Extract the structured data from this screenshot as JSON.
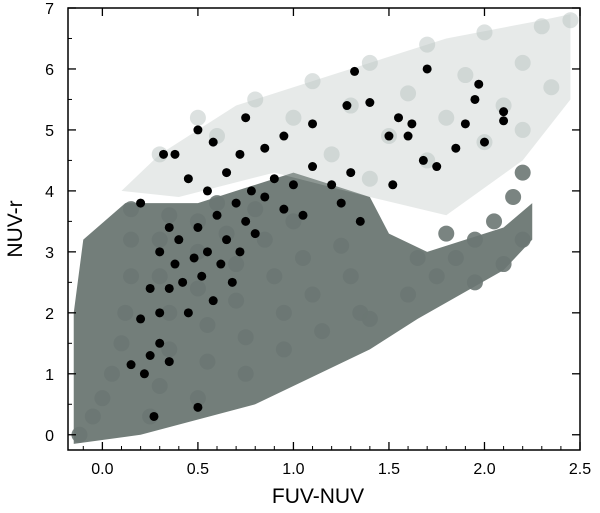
{
  "chart_data": {
    "type": "scatter",
    "title": "",
    "xlabel": "FUV-NUV",
    "ylabel": "NUV-r",
    "xlim": [
      -0.18,
      2.5
    ],
    "ylim": [
      -0.25,
      7
    ],
    "xticks": [
      0.0,
      0.5,
      1.0,
      1.5,
      2.0,
      2.5
    ],
    "xtick_labels": [
      "0.0",
      "0.5",
      "1.0",
      "1.5",
      "2.0",
      "2.5"
    ],
    "yticks": [
      0,
      1,
      2,
      3,
      4,
      5,
      6,
      7
    ],
    "ytick_labels": [
      "0",
      "1",
      "2",
      "3",
      "4",
      "5",
      "6",
      "7"
    ],
    "grid": false,
    "legend": "none",
    "colors": {
      "model_dense": "#6b7773",
      "model_faint": "#b9c4c1",
      "observed": "#000000"
    },
    "series": [
      {
        "style": "grey translucent model grid points",
        "points": [
          [
            -0.12,
            0.0
          ],
          [
            -0.05,
            0.3
          ],
          [
            0.0,
            0.6
          ],
          [
            0.05,
            1.0
          ],
          [
            0.1,
            1.5
          ],
          [
            0.12,
            2.0
          ],
          [
            0.15,
            2.6
          ],
          [
            0.15,
            3.2
          ],
          [
            0.15,
            3.7
          ],
          [
            0.25,
            0.3
          ],
          [
            0.3,
            0.8
          ],
          [
            0.35,
            1.4
          ],
          [
            0.35,
            2.0
          ],
          [
            0.3,
            2.6
          ],
          [
            0.3,
            3.2
          ],
          [
            0.35,
            3.6
          ],
          [
            0.5,
            0.6
          ],
          [
            0.55,
            1.2
          ],
          [
            0.55,
            1.8
          ],
          [
            0.5,
            2.4
          ],
          [
            0.5,
            3.0
          ],
          [
            0.5,
            3.5
          ],
          [
            0.75,
            1.0
          ],
          [
            0.75,
            1.6
          ],
          [
            0.7,
            2.2
          ],
          [
            0.7,
            2.8
          ],
          [
            0.65,
            3.3
          ],
          [
            0.6,
            3.8
          ],
          [
            0.95,
            1.4
          ],
          [
            0.95,
            2.0
          ],
          [
            0.9,
            2.6
          ],
          [
            0.85,
            3.2
          ],
          [
            0.8,
            3.7
          ],
          [
            1.15,
            1.7
          ],
          [
            1.1,
            2.3
          ],
          [
            1.05,
            2.9
          ],
          [
            1.0,
            3.5
          ],
          [
            1.35,
            2.0
          ],
          [
            1.3,
            2.6
          ],
          [
            1.25,
            3.1
          ],
          [
            1.4,
            1.9
          ],
          [
            1.6,
            2.3
          ],
          [
            1.65,
            2.9
          ],
          [
            1.75,
            2.6
          ],
          [
            1.85,
            2.9
          ],
          [
            1.95,
            3.2
          ],
          [
            2.05,
            3.5
          ],
          [
            2.15,
            3.9
          ],
          [
            2.2,
            4.3
          ],
          [
            1.8,
            3.3
          ],
          [
            1.95,
            2.5
          ],
          [
            2.1,
            2.8
          ],
          [
            2.2,
            3.2
          ]
        ]
      },
      {
        "style": "faint upper model envelope",
        "points": [
          [
            0.3,
            4.6
          ],
          [
            0.5,
            5.2
          ],
          [
            0.8,
            5.5
          ],
          [
            1.1,
            5.8
          ],
          [
            1.4,
            6.1
          ],
          [
            1.7,
            6.4
          ],
          [
            2.0,
            6.6
          ],
          [
            2.3,
            6.7
          ],
          [
            2.45,
            6.8
          ],
          [
            0.6,
            4.9
          ],
          [
            1.0,
            5.2
          ],
          [
            1.3,
            5.4
          ],
          [
            1.6,
            5.6
          ],
          [
            1.9,
            5.9
          ],
          [
            2.2,
            6.1
          ],
          [
            2.35,
            5.7
          ],
          [
            1.2,
            4.6
          ],
          [
            1.5,
            4.9
          ],
          [
            1.8,
            5.2
          ],
          [
            2.1,
            5.4
          ],
          [
            1.4,
            4.2
          ],
          [
            1.7,
            4.5
          ],
          [
            2.0,
            4.8
          ],
          [
            2.2,
            5.0
          ]
        ]
      },
      {
        "style": "black observed points",
        "points": [
          [
            0.27,
            0.3
          ],
          [
            0.5,
            0.45
          ],
          [
            0.15,
            1.15
          ],
          [
            0.22,
            1.0
          ],
          [
            0.25,
            1.3
          ],
          [
            0.3,
            1.5
          ],
          [
            0.35,
            1.2
          ],
          [
            0.2,
            1.9
          ],
          [
            0.25,
            2.4
          ],
          [
            0.3,
            2.0
          ],
          [
            0.35,
            2.4
          ],
          [
            0.38,
            2.8
          ],
          [
            0.4,
            3.2
          ],
          [
            0.42,
            2.5
          ],
          [
            0.45,
            2.0
          ],
          [
            0.48,
            2.9
          ],
          [
            0.5,
            3.4
          ],
          [
            0.52,
            2.6
          ],
          [
            0.55,
            3.0
          ],
          [
            0.58,
            2.2
          ],
          [
            0.6,
            3.6
          ],
          [
            0.62,
            2.8
          ],
          [
            0.65,
            3.2
          ],
          [
            0.68,
            2.5
          ],
          [
            0.7,
            3.8
          ],
          [
            0.72,
            3.0
          ],
          [
            0.75,
            3.5
          ],
          [
            0.78,
            4.0
          ],
          [
            0.8,
            3.3
          ],
          [
            0.85,
            3.9
          ],
          [
            0.9,
            4.2
          ],
          [
            0.95,
            3.7
          ],
          [
            1.0,
            4.1
          ],
          [
            1.05,
            3.6
          ],
          [
            1.1,
            4.4
          ],
          [
            0.32,
            4.6
          ],
          [
            0.38,
            4.6
          ],
          [
            0.5,
            5.0
          ],
          [
            0.58,
            4.8
          ],
          [
            0.75,
            5.2
          ],
          [
            0.85,
            4.7
          ],
          [
            0.95,
            4.9
          ],
          [
            1.1,
            5.1
          ],
          [
            0.2,
            3.8
          ],
          [
            0.3,
            3.0
          ],
          [
            0.55,
            4.0
          ],
          [
            0.65,
            4.3
          ],
          [
            0.45,
            4.2
          ],
          [
            0.35,
            3.4
          ],
          [
            0.72,
            4.6
          ],
          [
            1.2,
            4.1
          ],
          [
            1.25,
            3.8
          ],
          [
            1.3,
            4.3
          ],
          [
            1.35,
            3.5
          ],
          [
            1.28,
            5.4
          ],
          [
            1.32,
            5.96
          ],
          [
            1.4,
            5.45
          ],
          [
            1.5,
            4.9
          ],
          [
            1.52,
            4.1
          ],
          [
            1.55,
            5.2
          ],
          [
            1.6,
            4.9
          ],
          [
            1.62,
            5.1
          ],
          [
            1.68,
            4.5
          ],
          [
            1.7,
            6.0
          ],
          [
            1.75,
            4.4
          ],
          [
            1.85,
            4.7
          ],
          [
            1.9,
            5.1
          ],
          [
            1.95,
            5.5
          ],
          [
            1.97,
            5.75
          ],
          [
            2.0,
            4.8
          ],
          [
            2.1,
            5.15
          ],
          [
            2.1,
            5.3
          ]
        ]
      }
    ]
  }
}
